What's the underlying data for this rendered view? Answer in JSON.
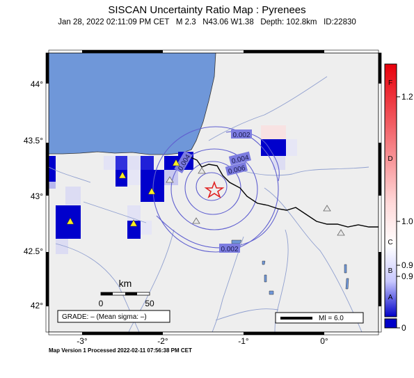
{
  "title": "SISCAN Uncertainty Ratio Map : Pyrenees",
  "subtitle": {
    "date": "Jan 28, 2022 02:11:09 PM CET",
    "magnitude": "M 2.3",
    "location": "N43.06 W1.38",
    "depth": "Depth: 102.8km",
    "id": "ID:22830"
  },
  "axes": {
    "latitude_ticks": [
      "44°",
      "43.5°",
      "43°",
      "42.5°",
      "42°"
    ],
    "longitude_ticks": [
      "-3°",
      "-2°",
      "-1°",
      "0°"
    ]
  },
  "scale_bar": {
    "unit": "km",
    "labels": [
      "0",
      "50"
    ]
  },
  "grade_box": "GRADE: – (Mean sigma: –)",
  "ml_legend": "Ml = 6.0",
  "contour_labels": [
    "0.002",
    "0.004",
    "0.006",
    "0.004",
    "0.002"
  ],
  "colorbar": {
    "grade_letters": [
      "F",
      "D",
      "C",
      "B",
      "A"
    ],
    "tick_labels": [
      "1.2",
      "1.0",
      "0.9",
      "0.9",
      "0"
    ],
    "colors": {
      "top": "#e8000b",
      "mid": "#ffffff",
      "bottom": "#0000c8"
    }
  },
  "footer": "Map Version 1 Processed 2022-02-11 07:56:38 PM CET",
  "colors": {
    "sea": "#6f97d9",
    "land": "#eeeeee",
    "cell_dark": "#0000cc",
    "river": "#8f9fcf",
    "epicenter": "#e02020"
  }
}
